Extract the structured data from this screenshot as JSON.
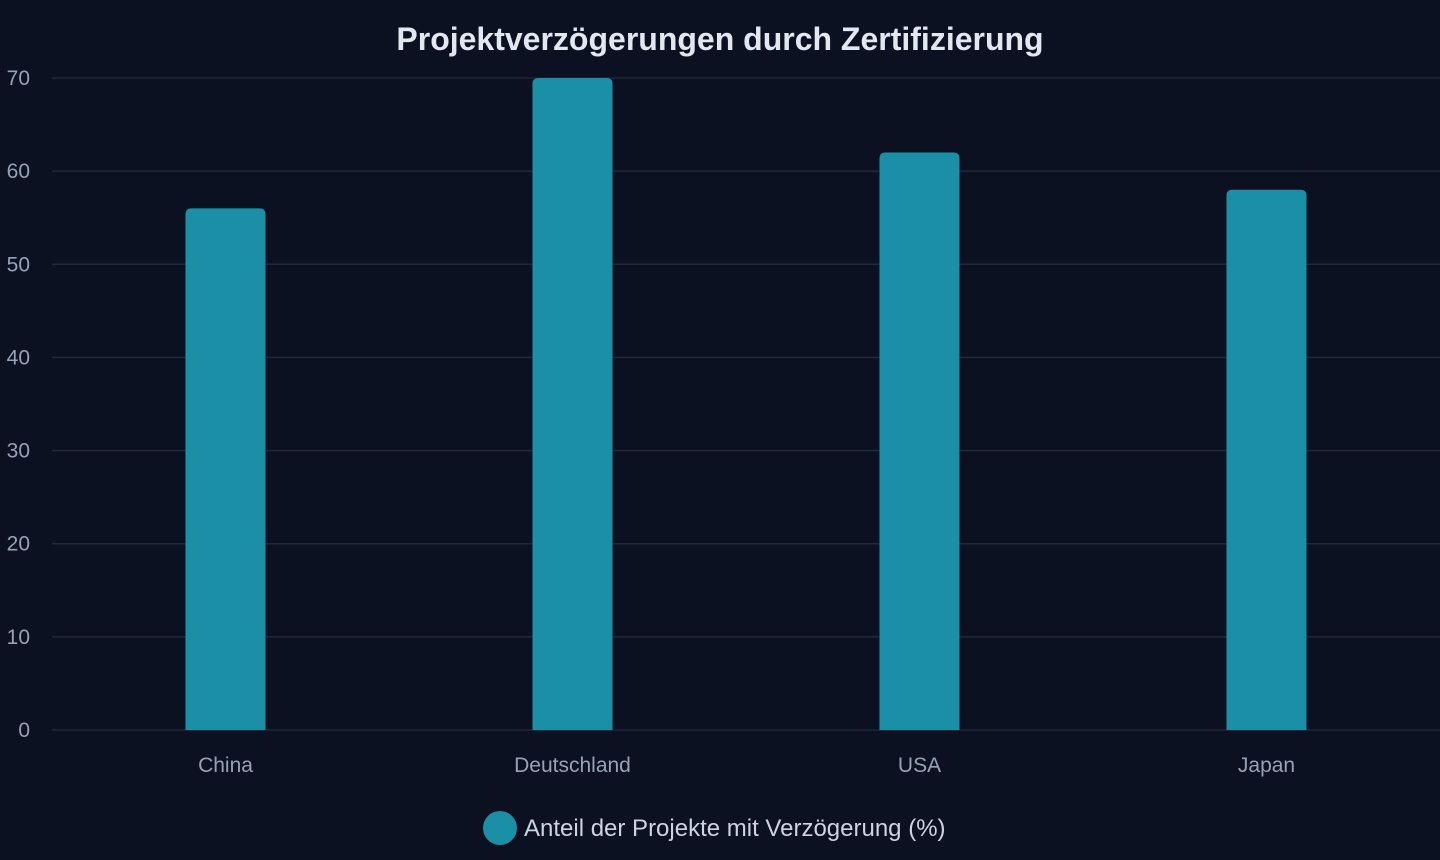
{
  "chart_data": {
    "type": "bar",
    "title": "Projektverzögerungen durch Zertifizierung",
    "xlabel": "",
    "ylabel": "",
    "categories": [
      "China",
      "Deutschland",
      "USA",
      "Japan"
    ],
    "series": [
      {
        "name": "Anteil der Projekte mit Verzögerung (%)",
        "values": [
          56,
          70,
          62,
          58
        ],
        "color": "#1a8fa6"
      }
    ],
    "ylim": [
      0,
      70
    ],
    "yticks": [
      0,
      10,
      20,
      30,
      40,
      50,
      60,
      70
    ],
    "grid": true,
    "legend_position": "bottom-center"
  }
}
